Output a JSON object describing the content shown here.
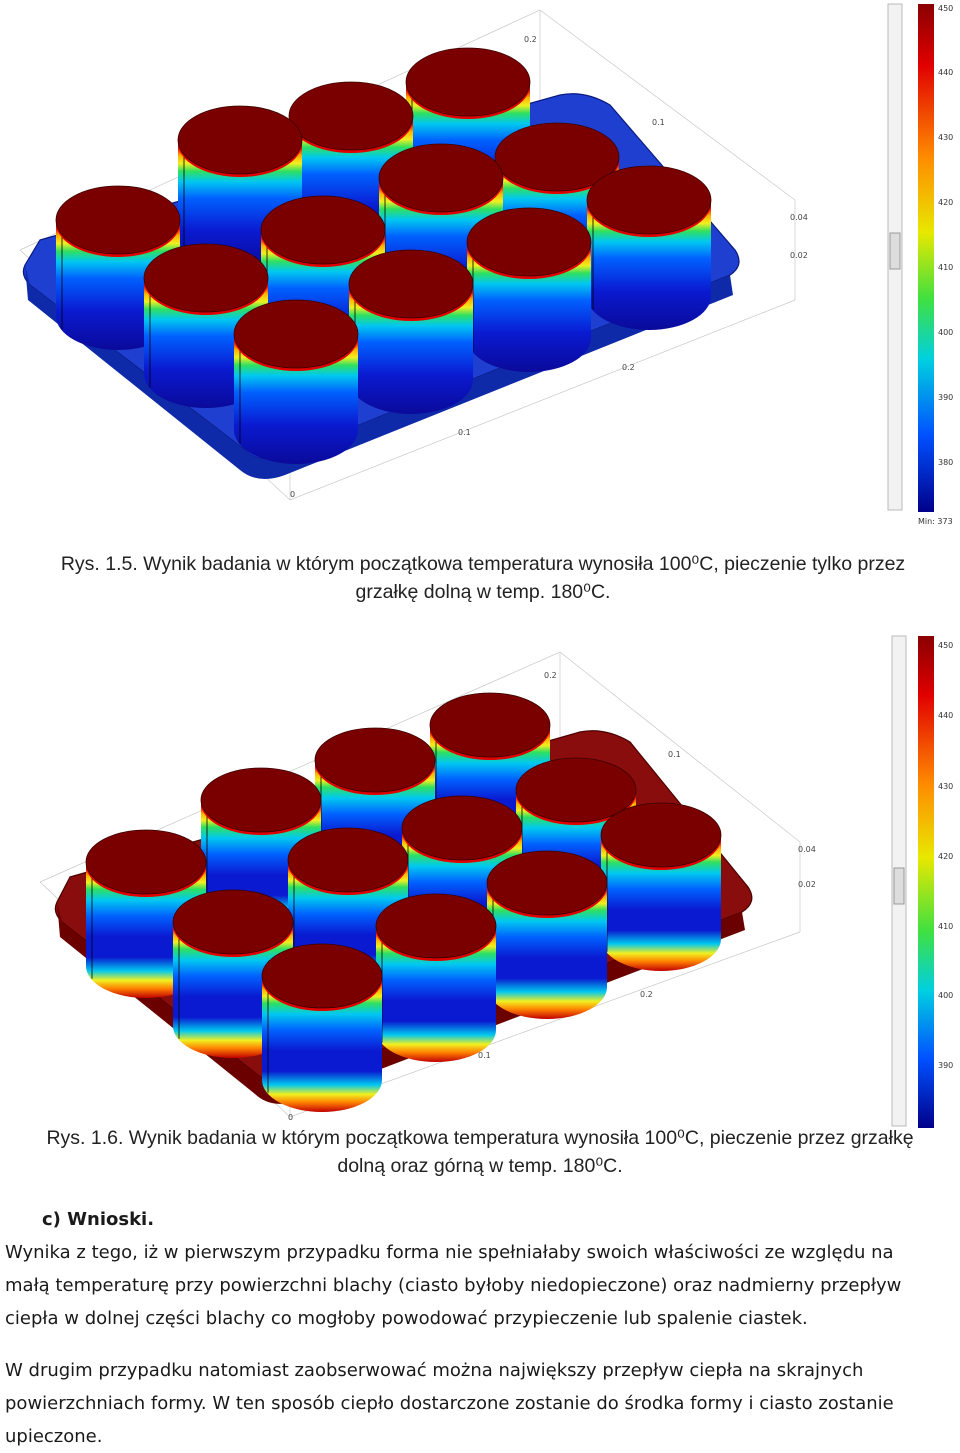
{
  "figure1": {
    "colorbar": {
      "ticks": [
        "450",
        "440",
        "430",
        "420",
        "410",
        "400",
        "390",
        "380"
      ],
      "min_label": "Min: 373"
    },
    "axis_ticks": [
      "0.2",
      "0.1",
      "0.04",
      "0.02",
      "0.2",
      "0.1",
      "0"
    ],
    "caption_line1": "Rys. 1.5. Wynik badania w którym początkowa temperatura wynosiła 100⁰C, pieczenie tylko przez",
    "caption_line2": "grzałkę dolną w temp. 180⁰C."
  },
  "figure2": {
    "colorbar": {
      "ticks": [
        "450",
        "440",
        "430",
        "420",
        "410",
        "400",
        "390"
      ]
    },
    "axis_ticks": [
      "0.2",
      "0.1",
      "0.04",
      "0.02",
      "0.2",
      "0.1",
      "0"
    ],
    "caption_line1": "Rys. 1.6. Wynik badania w którym początkowa temperatura wynosiła 100⁰C, pieczenie przez grzałkę",
    "caption_line2": "dolną oraz górną w temp. 180⁰C."
  },
  "section": {
    "heading": "c)   Wnioski."
  },
  "paragraphs": {
    "p1_line1": "Wynika z tego, iż w pierwszym przypadku forma nie spełniałaby swoich właściwości ze względu na",
    "p1_line2": "małą temperaturę przy powierzchni blachy (ciasto byłoby niedopieczone) oraz nadmierny przepływ",
    "p1_line3": "ciepła w dolnej części blachy co mogłoby powodować przypieczenie lub spalenie ciastek.",
    "p2_line1": "W drugim przypadku natomiast zaobserwować można największy przepływ ciepła na skrajnych",
    "p2_line2": "powierzchniach formy. W ten sposób ciepło dostarczone zostanie do środka formy i ciasto zostanie",
    "p2_line3": "upieczone."
  },
  "colors": {
    "hot": "#7a0000",
    "cold": "#0a1aa8",
    "tray1": "#1e3fd0",
    "tray2": "#8a0d0d"
  }
}
